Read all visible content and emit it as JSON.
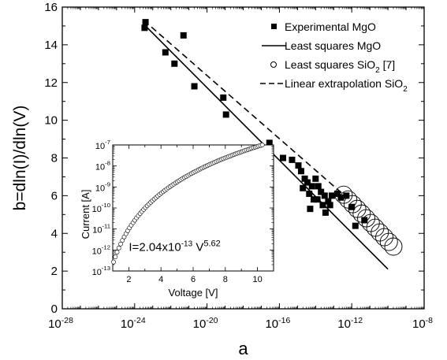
{
  "chart_data": [
    {
      "type": "scatter",
      "xlabel": "a",
      "ylabel": "b=dln(I)/dln(V)",
      "xscale": "log",
      "xlim_exp": [
        -28,
        -8
      ],
      "ylim": [
        0,
        16
      ],
      "x_ticks": [
        {
          "base": "10",
          "exp": "-28",
          "value": -28
        },
        {
          "base": "10",
          "exp": "-24",
          "value": -24
        },
        {
          "base": "10",
          "exp": "-20",
          "value": -20
        },
        {
          "base": "10",
          "exp": "-16",
          "value": -16
        },
        {
          "base": "10",
          "exp": "-12",
          "value": -12
        },
        {
          "base": "10",
          "exp": "-8",
          "value": -8
        }
      ],
      "y_ticks": [
        "0",
        "2",
        "4",
        "6",
        "8",
        "10",
        "12",
        "14",
        "16"
      ],
      "legend": {
        "placement": "top-right",
        "entries": [
          {
            "label": "Experimental MgO",
            "marker": "filled-square"
          },
          {
            "label": "Least squares MgO",
            "marker": "solid-line"
          },
          {
            "label_main": "Least squares SiO",
            "label_sub": "2",
            "label_tail": " [7]",
            "marker": "open-circle"
          },
          {
            "label_main": "Linear extrapolation SiO",
            "label_sub": "2",
            "label_tail": "",
            "marker": "dashed-line"
          }
        ]
      },
      "series": [
        {
          "name": "Experimental MgO",
          "points_log10x_y": [
            [
              -23.4,
              15.2
            ],
            [
              -23.45,
              14.9
            ],
            [
              -22.3,
              13.6
            ],
            [
              -21.8,
              13.0
            ],
            [
              -21.3,
              14.5
            ],
            [
              -20.7,
              11.8
            ],
            [
              -19.1,
              11.2
            ],
            [
              -18.95,
              10.3
            ],
            [
              -16.55,
              8.8
            ],
            [
              -15.8,
              8.0
            ],
            [
              -15.3,
              7.9
            ],
            [
              -14.95,
              7.6
            ],
            [
              -14.8,
              7.3
            ],
            [
              -14.6,
              6.9
            ],
            [
              -14.7,
              6.4
            ],
            [
              -14.45,
              6.7
            ],
            [
              -14.35,
              6.1
            ],
            [
              -14.2,
              6.5
            ],
            [
              -14.1,
              5.8
            ],
            [
              -14.3,
              5.3
            ],
            [
              -13.85,
              6.5
            ],
            [
              -13.9,
              5.8
            ],
            [
              -13.7,
              6.2
            ],
            [
              -13.6,
              5.5
            ],
            [
              -13.5,
              6.0
            ],
            [
              -13.45,
              5.1
            ],
            [
              -13.3,
              5.7
            ],
            [
              -13.1,
              6.0
            ],
            [
              -12.8,
              6.1
            ],
            [
              -12.3,
              6.0
            ],
            [
              -12.0,
              5.4
            ],
            [
              -11.8,
              4.4
            ],
            [
              -11.3,
              4.7
            ],
            [
              -14.0,
              6.9
            ],
            [
              -13.2,
              5.5
            ],
            [
              -12.6,
              5.9
            ]
          ]
        },
        {
          "name": "Least squares MgO",
          "line_log10x_y": [
            [
              -23.5,
              15.1
            ],
            [
              -10.0,
              2.1
            ]
          ]
        },
        {
          "name": "Least squares SiO2 [7]",
          "points_log10x_y": [
            [
              -12.45,
              6.05
            ],
            [
              -12.2,
              5.8
            ],
            [
              -11.95,
              5.55
            ],
            [
              -11.7,
              5.3
            ],
            [
              -11.45,
              5.05
            ],
            [
              -11.2,
              4.8
            ],
            [
              -10.95,
              4.55
            ],
            [
              -10.7,
              4.3
            ],
            [
              -10.45,
              4.05
            ],
            [
              -10.2,
              3.8
            ],
            [
              -9.95,
              3.55
            ],
            [
              -9.7,
              3.3
            ]
          ]
        },
        {
          "name": "Linear extrapolation SiO2",
          "line_log10x_y": [
            [
              -23.5,
              15.3
            ],
            [
              -12.45,
              6.05
            ]
          ]
        }
      ]
    },
    {
      "type": "scatter",
      "xlabel": "Voltage [V]",
      "ylabel": "Current [A]",
      "xlim": [
        1,
        11
      ],
      "ylim_exp": [
        -13,
        -7
      ],
      "yscale": "log",
      "x_ticks": [
        "2",
        "4",
        "6",
        "8",
        "10"
      ],
      "y_ticks": [
        {
          "base": "10",
          "exp": "-13",
          "value": -13
        },
        {
          "base": "10",
          "exp": "-12",
          "value": -12
        },
        {
          "base": "10",
          "exp": "-11",
          "value": -11
        },
        {
          "base": "10",
          "exp": "-10",
          "value": -10
        },
        {
          "base": "10",
          "exp": "-9",
          "value": -9
        },
        {
          "base": "10",
          "exp": "-8",
          "value": -8
        },
        {
          "base": "10",
          "exp": "-7",
          "value": -7
        }
      ],
      "annotation": {
        "prefix": "I=2.04x10",
        "exp1": "-13",
        "mid": " V",
        "exp2": "5.62"
      },
      "fit": {
        "coef": 2.04e-13,
        "power": 5.62
      },
      "v_range": [
        1.05,
        10.3
      ]
    }
  ]
}
